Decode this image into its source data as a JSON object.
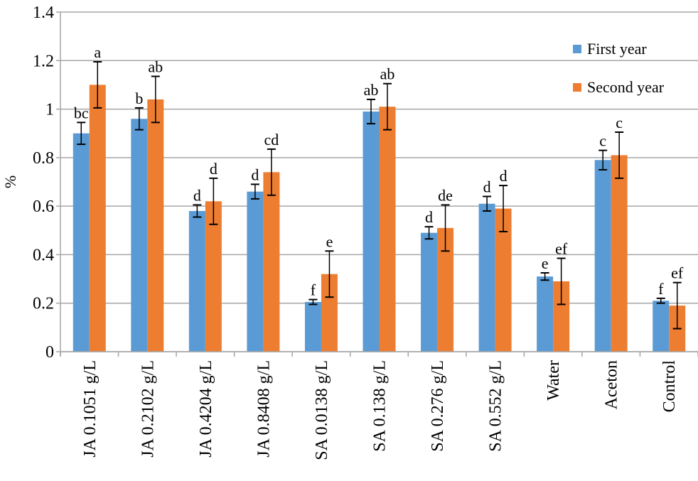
{
  "chart_data": {
    "type": "bar",
    "title": "",
    "xlabel": "",
    "ylabel": "%",
    "ylim": [
      0,
      1.4
    ],
    "yticks": [
      "0",
      "0.2",
      "0.4",
      "0.6",
      "0.8",
      "1",
      "1.2",
      "1.4"
    ],
    "grid": true,
    "legend_position": "top-right",
    "categories": [
      "JA 0.1051 g/L",
      "JA 0.2102 g/L",
      "JA 0.4204 g/L",
      "JA 0.8408 g/L",
      "SA 0.0138 g/L",
      "SA 0.138 g/L",
      "SA 0.276 g/L",
      "SA 0.552 g/L",
      "Water",
      "Aceton",
      "Control"
    ],
    "series": [
      {
        "name": "First year",
        "color": "#5B9BD5",
        "values": [
          0.9,
          0.96,
          0.58,
          0.66,
          0.205,
          0.99,
          0.49,
          0.61,
          0.31,
          0.79,
          0.21
        ],
        "errors": [
          0.045,
          0.045,
          0.025,
          0.03,
          0.01,
          0.05,
          0.025,
          0.03,
          0.015,
          0.04,
          0.01
        ],
        "letters": [
          "bc",
          "b",
          "d",
          "d",
          "f",
          "ab",
          "d",
          "d",
          "e",
          "c",
          "f"
        ]
      },
      {
        "name": "Second year",
        "color": "#ED7D31",
        "values": [
          1.1,
          1.04,
          0.62,
          0.74,
          0.32,
          1.01,
          0.51,
          0.59,
          0.29,
          0.81,
          0.19
        ],
        "errors": [
          0.095,
          0.095,
          0.095,
          0.095,
          0.095,
          0.095,
          0.095,
          0.095,
          0.095,
          0.095,
          0.095
        ],
        "letters": [
          "a",
          "ab",
          "d",
          "cd",
          "e",
          "ab",
          "de",
          "d",
          "ef",
          "c",
          "ef"
        ]
      }
    ]
  }
}
